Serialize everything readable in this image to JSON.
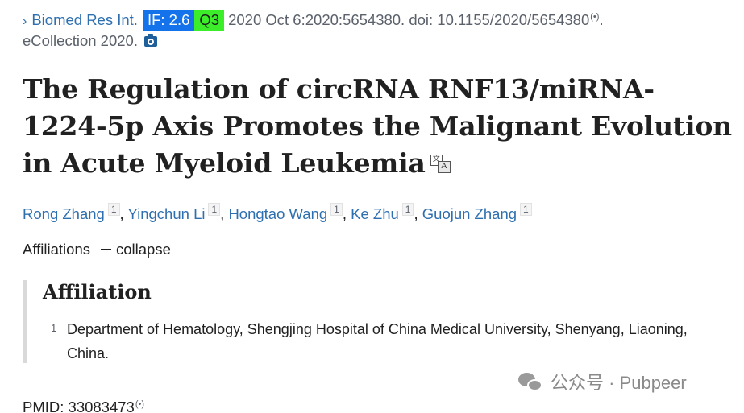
{
  "citation": {
    "chevron": "›",
    "journal": "Biomed Res Int.",
    "if_badge": "IF: 2.6",
    "quartile_badge": "Q3",
    "details": "2020 Oct 6:2020:5654380. doi: 10.1155/2020/5654380",
    "signal_glyph": "(•)",
    "suffix": ".",
    "ecollection": "eCollection 2020."
  },
  "title": "The Regulation of circRNA RNF13/miRNA-1224-5p Axis Promotes the Malignant Evolution in Acute Myeloid Leukemia",
  "translate_glyphs": {
    "left": "文",
    "right": "A"
  },
  "authors": [
    {
      "name": "Rong Zhang",
      "aff": "1"
    },
    {
      "name": "Yingchun Li",
      "aff": "1"
    },
    {
      "name": "Hongtao Wang",
      "aff": "1"
    },
    {
      "name": "Ke Zhu",
      "aff": "1"
    },
    {
      "name": "Guojun Zhang",
      "aff": "1"
    }
  ],
  "separator": ",",
  "affiliations_toggle": {
    "label": "Affiliations",
    "action": "collapse"
  },
  "affiliation_panel": {
    "heading": "Affiliation",
    "items": [
      {
        "num": "1",
        "text": "Department of Hematology, Shengjing Hospital of China Medical University, Shenyang, Liaoning, China."
      }
    ]
  },
  "watermark": "公众号 · Pubpeer",
  "pmid": {
    "text": "PMID: 33083473",
    "signal_glyph": "(•)"
  },
  "colors": {
    "link": "#2e6fb0",
    "if_badge_bg": "#1472ea",
    "quartile_badge_bg": "#3cee2a",
    "panel_border": "#d9d9d9"
  }
}
